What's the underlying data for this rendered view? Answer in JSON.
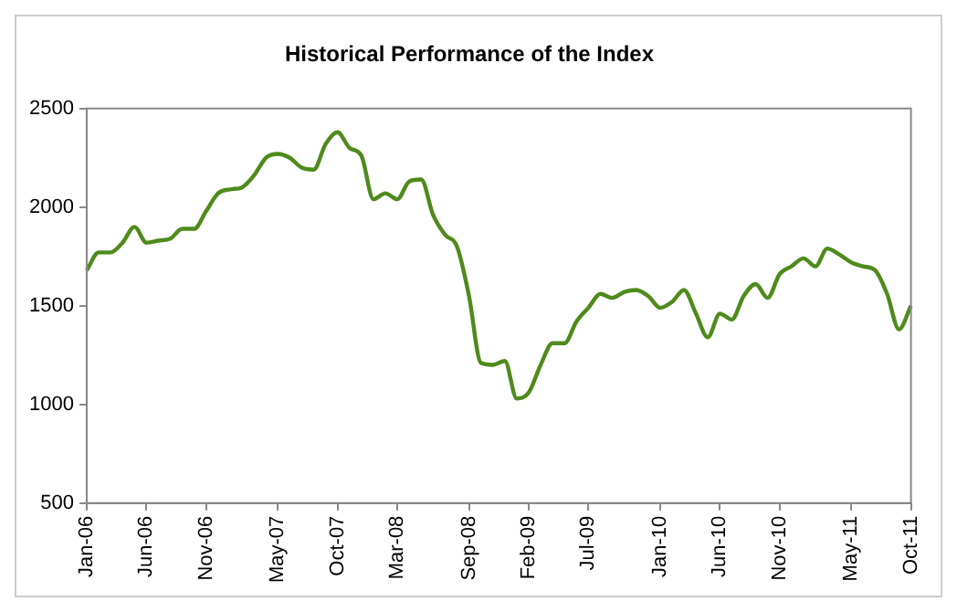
{
  "chart_data": {
    "type": "line",
    "title": "Historical Performance of the Index",
    "categories": [
      "Jan-06",
      null,
      null,
      null,
      null,
      "Jun-06",
      null,
      null,
      null,
      null,
      "Nov-06",
      null,
      null,
      null,
      null,
      null,
      "May-07",
      null,
      null,
      null,
      null,
      "Oct-07",
      null,
      null,
      null,
      null,
      "Mar-08",
      null,
      null,
      null,
      null,
      null,
      "Sep-08",
      null,
      null,
      null,
      null,
      "Feb-09",
      null,
      null,
      null,
      null,
      "Jul-09",
      null,
      null,
      null,
      null,
      null,
      "Jan-10",
      null,
      null,
      null,
      null,
      "Jun-10",
      null,
      null,
      null,
      null,
      "Nov-10",
      null,
      null,
      null,
      null,
      null,
      "May-11",
      null,
      null,
      null,
      null,
      "Oct-11"
    ],
    "series": [
      {
        "color": "#4f8a1c",
        "values": [
          1680,
          1770,
          1770,
          1820,
          1900,
          1820,
          1830,
          1840,
          1890,
          1890,
          1980,
          2070,
          2090,
          2100,
          2160,
          2250,
          2270,
          2250,
          2200,
          2190,
          2320,
          2380,
          2300,
          2260,
          2040,
          2070,
          2040,
          2130,
          2140,
          1960,
          1860,
          1800,
          1550,
          1210,
          1200,
          1220,
          1030,
          1060,
          1200,
          1310,
          1310,
          1420,
          1490,
          1560,
          1540,
          1570,
          1580,
          1550,
          1490,
          1520,
          1580,
          1460,
          1340,
          1460,
          1430,
          1550,
          1610,
          1540,
          1660,
          1700,
          1740,
          1700,
          1790,
          1760,
          1720,
          1700,
          1680,
          1560,
          1380,
          1500
        ]
      }
    ],
    "ylim": [
      500,
      2500
    ],
    "yticks": [
      500,
      1000,
      1500,
      2000,
      2500
    ],
    "grid": false,
    "legend": false,
    "marker": "none",
    "line_style": "solid"
  }
}
